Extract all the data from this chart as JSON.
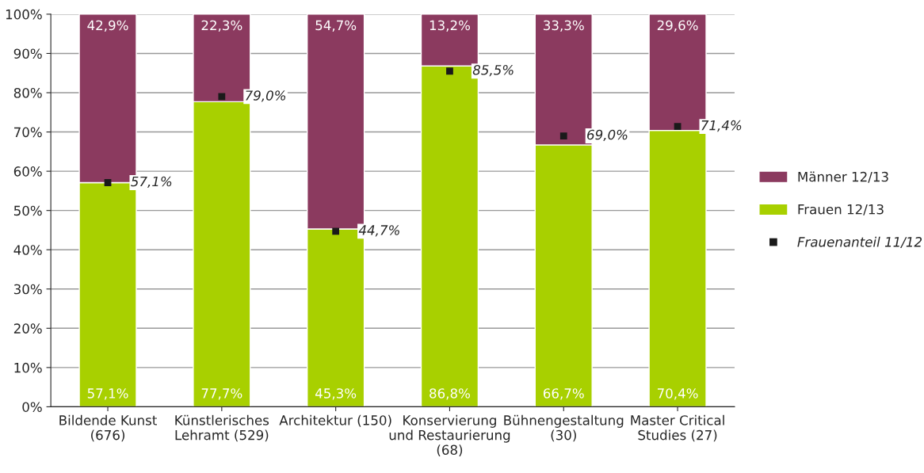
{
  "chart_data": {
    "type": "bar",
    "stacked": true,
    "categories": [
      "Bildende Kunst\n(676)",
      "Künstlerisches\nLehramt (529)",
      "Architektur (150)",
      "Konservierung\nund Restaurierung\n(68)",
      "Bühnengestaltung\n(30)",
      "Master Critical\nStudies (27)"
    ],
    "series": [
      {
        "name": "Frauen 12/13",
        "color": "#a8d000",
        "values": [
          57.1,
          77.7,
          45.3,
          86.8,
          66.7,
          70.4
        ],
        "value_labels": [
          "57,1%",
          "77,7%",
          "45,3%",
          "86,8%",
          "66,7%",
          "70,4%"
        ]
      },
      {
        "name": "Männer 12/13",
        "color": "#8b3a5f",
        "values": [
          42.9,
          22.3,
          54.7,
          13.2,
          33.3,
          29.6
        ],
        "value_labels": [
          "42,9%",
          "22,3%",
          "54,7%",
          "13,2%",
          "33,3%",
          "29,6%"
        ]
      },
      {
        "name": "Frauenanteil 11/12",
        "type": "scatter",
        "marker": "square",
        "color": "#1a1a1a",
        "values": [
          57.1,
          79.0,
          44.7,
          85.5,
          69.0,
          71.4
        ],
        "value_labels": [
          "57,1%",
          "79,0%",
          "44,7%",
          "85,5%",
          "69,0%",
          "71,4%"
        ]
      }
    ],
    "ylim": [
      0,
      100
    ],
    "yticks": [
      {
        "value": 0,
        "label": "0%"
      },
      {
        "value": 10,
        "label": "10%"
      },
      {
        "value": 20,
        "label": "20%"
      },
      {
        "value": 30,
        "label": "30%"
      },
      {
        "value": 40,
        "label": "40%"
      },
      {
        "value": 50,
        "label": "50%"
      },
      {
        "value": 60,
        "label": "60%"
      },
      {
        "value": 70,
        "label": "70%"
      },
      {
        "value": 80,
        "label": "80%"
      },
      {
        "value": 90,
        "label": "90%"
      },
      {
        "value": 100,
        "label": "100%"
      }
    ],
    "grid": "y",
    "legend": "right"
  }
}
